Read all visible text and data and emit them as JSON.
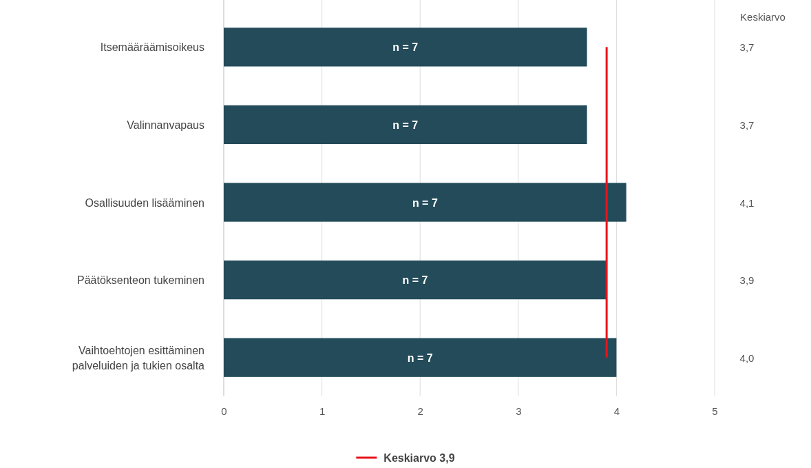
{
  "chart_data": {
    "type": "bar",
    "orientation": "horizontal",
    "categories": [
      "Itsemääräämisoikeus",
      "Valinnanvapaus",
      "Osallisuuden lisääminen",
      "Päätöksenteon tukeminen",
      "Vaihtoehtojen esittäminen palveluiden ja tukien osalta"
    ],
    "values": [
      3.7,
      3.7,
      4.1,
      3.9,
      4.0
    ],
    "value_labels": [
      "3,7",
      "3,7",
      "4,1",
      "3,9",
      "4,0"
    ],
    "color": "#234b5a",
    "xlim": [
      0,
      5
    ],
    "xticks": [
      0,
      1,
      2,
      3,
      4,
      5
    ],
    "grid": "x",
    "legend": "bottom",
    "ref_lines": [
      {
        "axis": "x",
        "value": 3.9,
        "label": "Keskiarvo 3,9",
        "color": "#e8141a"
      }
    ],
    "annotations": [
      "Keskiarvo",
      "n = 7",
      "n = 7",
      "n = 7",
      "n = 7",
      "n = 7"
    ]
  }
}
